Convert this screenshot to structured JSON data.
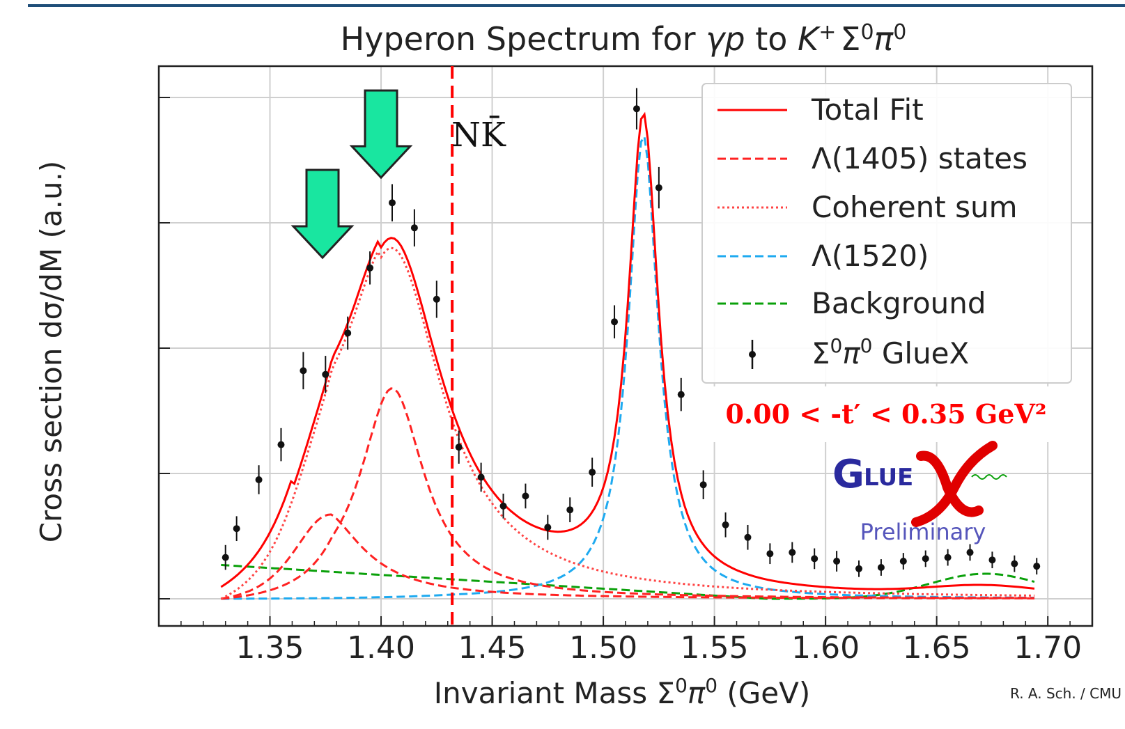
{
  "chart_data": {
    "type": "line",
    "title_parts": {
      "main": "Hyperon Spectrum for ",
      "gp": "γp",
      "to": " to ",
      "K": "K",
      "Kplus": "+",
      "Sigma": "Σ",
      "S0": "0",
      "pi": "π",
      "pi0": "0"
    },
    "xlabel_parts": {
      "main": "Invariant Mass Σ",
      "s0": "0",
      "pi": "π",
      "pi0": "0",
      "unit": " (GeV)"
    },
    "ylabel": "Cross section dσ/dM    (a.u.)",
    "xlim": [
      1.3,
      1.72
    ],
    "ylim": [
      -0.06,
      1.05
    ],
    "x_ticks": [
      "1.35",
      "1.40",
      "1.45",
      "1.50",
      "1.55",
      "1.60",
      "1.65",
      "1.70"
    ],
    "grid": true,
    "legend_position": "top-right",
    "legend": {
      "total_fit": "Total Fit",
      "l1405": "Λ(1405) states",
      "coherent": "Coherent sum",
      "l1520": "Λ(1520)",
      "background": "Background",
      "data_main": "Σ",
      "data_s0": "0",
      "data_pi": "π",
      "data_pi0": "0",
      "data_rest": " GlueX"
    },
    "annotations": {
      "nk": "NK̄",
      "t_range": "0.00 < -t′ < 0.35 GeV²",
      "logo": "GLUEX",
      "preliminary": "Preliminary",
      "credit": "R. A. Sch. / CMU",
      "threshold_x": 1.432
    },
    "colors": {
      "total": "#ff0000",
      "l1405": "#ff2222",
      "coherent": "#ff4444",
      "l1520": "#1eaaf0",
      "background": "#0aa00a",
      "data": "#111111",
      "arrow": "#19e6a0",
      "logo_blue": "#2a2a9e",
      "logo_red": "#e00000",
      "frame": "#222222",
      "t_text": "#ff0000",
      "prelim": "#5555bb"
    },
    "data_points": [
      {
        "x": 1.33,
        "y": 0.33,
        "e": 0.03
      },
      {
        "x": 1.335,
        "y": 0.56,
        "e": 0.03
      },
      {
        "x": 1.345,
        "y": 0.95,
        "e": 0.035
      },
      {
        "x": 1.355,
        "y": 1.23,
        "e": 0.04
      },
      {
        "x": 1.365,
        "y": 1.82,
        "e": 0.045
      },
      {
        "x": 1.375,
        "y": 1.79,
        "e": 0.045
      },
      {
        "x": 1.385,
        "y": 2.12,
        "e": 0.04
      },
      {
        "x": 1.395,
        "y": 2.64,
        "e": 0.04
      },
      {
        "x": 1.405,
        "y": 3.16,
        "e": 0.045
      },
      {
        "x": 1.415,
        "y": 2.96,
        "e": 0.045
      },
      {
        "x": 1.425,
        "y": 2.39,
        "e": 0.045
      },
      {
        "x": 1.435,
        "y": 1.21,
        "e": 0.04
      },
      {
        "x": 1.445,
        "y": 0.97,
        "e": 0.035
      },
      {
        "x": 1.455,
        "y": 0.74,
        "e": 0.03
      },
      {
        "x": 1.465,
        "y": 0.82,
        "e": 0.03
      },
      {
        "x": 1.475,
        "y": 0.57,
        "e": 0.03
      },
      {
        "x": 1.485,
        "y": 0.71,
        "e": 0.03
      },
      {
        "x": 1.495,
        "y": 1.01,
        "e": 0.035
      },
      {
        "x": 1.505,
        "y": 2.21,
        "e": 0.04
      },
      {
        "x": 1.515,
        "y": 3.91,
        "e": 0.05
      },
      {
        "x": 1.525,
        "y": 3.28,
        "e": 0.05
      },
      {
        "x": 1.535,
        "y": 1.63,
        "e": 0.04
      },
      {
        "x": 1.545,
        "y": 0.91,
        "e": 0.035
      },
      {
        "x": 1.555,
        "y": 0.59,
        "e": 0.03
      },
      {
        "x": 1.565,
        "y": 0.49,
        "e": 0.03
      },
      {
        "x": 1.575,
        "y": 0.36,
        "e": 0.025
      },
      {
        "x": 1.585,
        "y": 0.37,
        "e": 0.025
      },
      {
        "x": 1.595,
        "y": 0.32,
        "e": 0.025
      },
      {
        "x": 1.605,
        "y": 0.3,
        "e": 0.025
      },
      {
        "x": 1.615,
        "y": 0.24,
        "e": 0.02
      },
      {
        "x": 1.625,
        "y": 0.25,
        "e": 0.02
      },
      {
        "x": 1.635,
        "y": 0.3,
        "e": 0.02
      },
      {
        "x": 1.645,
        "y": 0.32,
        "e": 0.02
      },
      {
        "x": 1.655,
        "y": 0.33,
        "e": 0.02
      },
      {
        "x": 1.665,
        "y": 0.37,
        "e": 0.02
      },
      {
        "x": 1.675,
        "y": 0.31,
        "e": 0.02
      },
      {
        "x": 1.685,
        "y": 0.28,
        "e": 0.02
      },
      {
        "x": 1.695,
        "y": 0.26,
        "e": 0.02
      }
    ]
  }
}
